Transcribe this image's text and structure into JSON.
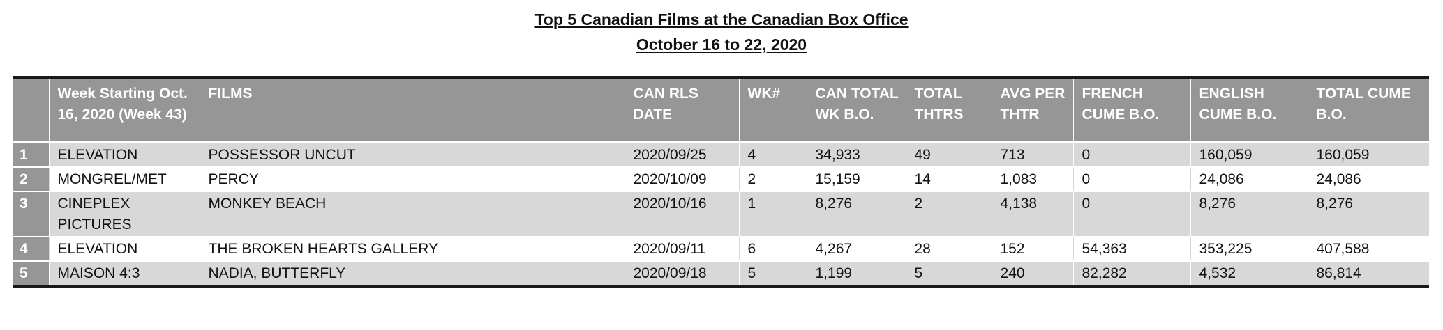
{
  "title": {
    "line1": "Top 5 Canadian Films at the Canadian Box Office",
    "line2": "October 16 to 22, 2020"
  },
  "table": {
    "headers": [
      "",
      "Week Starting Oct. 16, 2020 (Week  43)",
      "FILMS",
      "CAN RLS DATE",
      "WK#",
      "CAN TOTAL WK B.O.",
      "TOTAL THTRS",
      "AVG PER THTR",
      "FRENCH CUME B.O.",
      "ENGLISH CUME B.O.",
      "TOTAL CUME B.O."
    ],
    "rows": [
      {
        "rank": "1",
        "distributor": "ELEVATION",
        "film": "POSSESSOR UNCUT",
        "release_date": "2020/09/25",
        "week": "4",
        "week_bo": "34,933",
        "theatres": "49",
        "avg_per_theatre": "713",
        "french_cume": "0",
        "english_cume": "160,059",
        "total_cume": "160,059"
      },
      {
        "rank": "2",
        "distributor": "MONGREL/MET",
        "film": "PERCY",
        "release_date": "2020/10/09",
        "week": "2",
        "week_bo": "15,159",
        "theatres": "14",
        "avg_per_theatre": "1,083",
        "french_cume": "0",
        "english_cume": "24,086",
        "total_cume": "24,086"
      },
      {
        "rank": "3",
        "distributor": "CINEPLEX PICTURES",
        "film": "MONKEY BEACH",
        "release_date": "2020/10/16",
        "week": "1",
        "week_bo": "8,276",
        "theatres": "2",
        "avg_per_theatre": "4,138",
        "french_cume": "0",
        "english_cume": "8,276",
        "total_cume": "8,276"
      },
      {
        "rank": "4",
        "distributor": "ELEVATION",
        "film": "THE BROKEN HEARTS GALLERY",
        "release_date": "2020/09/11",
        "week": "6",
        "week_bo": "4,267",
        "theatres": "28",
        "avg_per_theatre": "152",
        "french_cume": "54,363",
        "english_cume": "353,225",
        "total_cume": "407,588"
      },
      {
        "rank": "5",
        "distributor": "MAISON 4:3",
        "film": "NADIA, BUTTERFLY",
        "release_date": "2020/09/18",
        "week": "5",
        "week_bo": "1,199",
        "theatres": "5",
        "avg_per_theatre": "240",
        "french_cume": "82,282",
        "english_cume": "4,532",
        "total_cume": "86,814"
      }
    ]
  },
  "colors": {
    "header_bg": "#969696",
    "header_text": "#ffffff",
    "shaded_row": "#d8d8d8",
    "rule": "#1a1a1a"
  }
}
